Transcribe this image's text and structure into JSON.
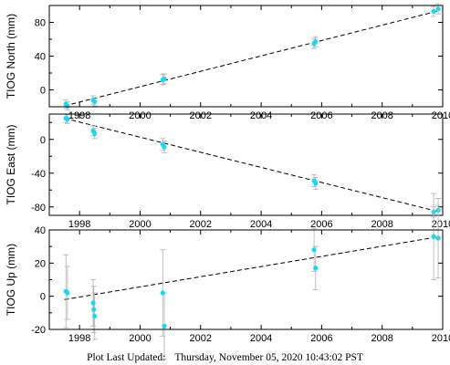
{
  "chart_data": [
    {
      "type": "scatter",
      "title": "",
      "xlabel": "",
      "ylabel": "TIOG North (mm)",
      "xlim": [
        1997.0,
        2010.0
      ],
      "ylim": [
        -20,
        100
      ],
      "x_ticks": [
        "1998",
        "2000",
        "2002",
        "2004",
        "2006",
        "2008",
        "2010"
      ],
      "y_ticks": [
        "0",
        "40",
        "80"
      ],
      "grid": false,
      "points": [
        {
          "x": 1997.55,
          "y": -17,
          "err": 5
        },
        {
          "x": 1997.6,
          "y": -19,
          "err": 5
        },
        {
          "x": 1998.45,
          "y": -12,
          "err": 5
        },
        {
          "x": 1998.5,
          "y": -14,
          "err": 5
        },
        {
          "x": 2000.75,
          "y": 12,
          "err": 6
        },
        {
          "x": 2000.8,
          "y": 13,
          "err": 6
        },
        {
          "x": 2005.75,
          "y": 55,
          "err": 6
        },
        {
          "x": 2005.8,
          "y": 57,
          "err": 6
        },
        {
          "x": 2009.7,
          "y": 93,
          "err": 6
        },
        {
          "x": 2009.85,
          "y": 96,
          "err": 6
        }
      ],
      "trend": {
        "x": [
          1997.5,
          2009.9
        ],
        "y": [
          -19,
          94
        ]
      }
    },
    {
      "type": "scatter",
      "title": "",
      "xlabel": "",
      "ylabel": "TIOG East (mm)",
      "xlim": [
        1997.0,
        2010.0
      ],
      "ylim": [
        -90,
        30
      ],
      "x_ticks": [
        "1998",
        "2000",
        "2002",
        "2004",
        "2006",
        "2008",
        "2010"
      ],
      "y_ticks": [
        "0",
        "-40",
        "-80"
      ],
      "grid": false,
      "points": [
        {
          "x": 1997.55,
          "y": 25,
          "err": 5
        },
        {
          "x": 1997.6,
          "y": 24,
          "err": 5
        },
        {
          "x": 1998.45,
          "y": 10,
          "err": 6
        },
        {
          "x": 1998.5,
          "y": 7,
          "err": 6
        },
        {
          "x": 2000.75,
          "y": -6,
          "err": 7
        },
        {
          "x": 2000.8,
          "y": -9,
          "err": 7
        },
        {
          "x": 2005.75,
          "y": -49,
          "err": 7
        },
        {
          "x": 2005.8,
          "y": -52,
          "err": 7
        },
        {
          "x": 2009.7,
          "y": -86,
          "err": 6
        },
        {
          "x": 2009.85,
          "y": -84,
          "err": 6
        }
      ],
      "trend": {
        "x": [
          1997.5,
          2009.9
        ],
        "y": [
          25,
          -86
        ]
      }
    },
    {
      "type": "scatter",
      "title": "",
      "xlabel": "",
      "ylabel": "TIOG Up (mm)",
      "xlim": [
        1997.0,
        2010.0
      ],
      "ylim": [
        -20,
        40
      ],
      "x_ticks": [
        "1998",
        "2000",
        "2002",
        "2004",
        "2006",
        "2008",
        "2010"
      ],
      "y_ticks": [
        "-20",
        "0",
        "20",
        "40"
      ],
      "grid": false,
      "points": [
        {
          "x": 1997.55,
          "y": 3,
          "err": 22
        },
        {
          "x": 1997.6,
          "y": 2,
          "err": 16
        },
        {
          "x": 1998.45,
          "y": -4,
          "err": 14
        },
        {
          "x": 1998.47,
          "y": -8,
          "err": 14
        },
        {
          "x": 1998.5,
          "y": -12,
          "err": 14
        },
        {
          "x": 2000.75,
          "y": 2,
          "err": 26
        },
        {
          "x": 2000.8,
          "y": -18,
          "err": 20
        },
        {
          "x": 2005.75,
          "y": 28,
          "err": 13
        },
        {
          "x": 2005.8,
          "y": 17,
          "err": 13
        },
        {
          "x": 2009.7,
          "y": 36,
          "err": 26
        },
        {
          "x": 2009.85,
          "y": 35,
          "err": 24
        }
      ],
      "trend": {
        "x": [
          1997.5,
          2009.9
        ],
        "y": [
          -2,
          36
        ]
      }
    }
  ],
  "footer": {
    "label": "Plot Last Updated:",
    "value": "Thursday, November 05, 2020 10:43:02 PST"
  },
  "colors": {
    "marker": "#1ad8f2",
    "errorbar": "#b0b0b0",
    "trend": "#000000",
    "axis": "#000000"
  }
}
